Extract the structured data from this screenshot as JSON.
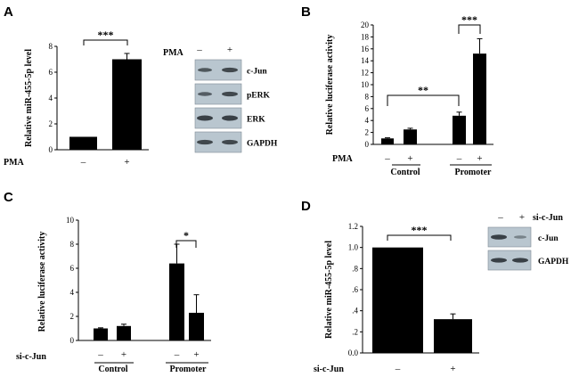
{
  "chart_data": [
    {
      "panel": "A",
      "type": "bar",
      "ylabel": "Relative miR-455-5p level",
      "ylim": [
        0,
        8
      ],
      "yticks": [
        "0",
        "2",
        "4",
        "6",
        "8"
      ],
      "treatment_label": "PMA",
      "treatment_signs": [
        "–",
        "+"
      ],
      "values": [
        1.0,
        7.0
      ],
      "errors": [
        0,
        0.45
      ],
      "significance": "***",
      "western_blot": {
        "treatment_label": "PMA",
        "signs": [
          "–",
          "+"
        ],
        "rows": [
          "c-Jun",
          "pERK",
          "ERK",
          "GAPDH"
        ]
      }
    },
    {
      "panel": "B",
      "type": "bar",
      "ylabel": "Relative luciferase activity",
      "ylim": [
        0,
        20
      ],
      "yticks": [
        "0",
        "2",
        "4",
        "6",
        "8",
        "10",
        "12",
        "14",
        "16",
        "18",
        "20"
      ],
      "treatment_label": "PMA",
      "treatment_signs": [
        "–",
        "+",
        "–",
        "+"
      ],
      "groups": [
        "Control",
        "Promoter"
      ],
      "values": [
        1.0,
        2.5,
        4.8,
        15.2
      ],
      "errors": [
        0.1,
        0.2,
        0.6,
        2.5
      ],
      "significance": [
        "**",
        "***"
      ]
    },
    {
      "panel": "C",
      "type": "bar",
      "ylabel": "Relative luciferase activity",
      "ylim": [
        0,
        10
      ],
      "yticks": [
        "0",
        "2",
        "4",
        "6",
        "8",
        "10"
      ],
      "treatment_label": "si-c-Jun",
      "treatment_signs": [
        "–",
        "+",
        "–",
        "+"
      ],
      "groups": [
        "Control",
        "Promoter"
      ],
      "values": [
        1.0,
        1.2,
        6.4,
        2.3
      ],
      "errors": [
        0.05,
        0.15,
        1.6,
        1.5
      ],
      "significance": "*"
    },
    {
      "panel": "D",
      "type": "bar",
      "ylabel": "Relative miR-455-5p level",
      "ylim": [
        0,
        1.2
      ],
      "yticks": [
        "0.0",
        ".2",
        ".4",
        ".6",
        ".8",
        "1.0",
        "1.2"
      ],
      "treatment_label": "si-c-Jun",
      "treatment_signs": [
        "–",
        "+"
      ],
      "values": [
        1.0,
        0.32
      ],
      "errors": [
        0,
        0.05
      ],
      "significance": "***",
      "western_blot": {
        "treatment_label": "si-c-Jun",
        "signs": [
          "–",
          "+"
        ],
        "rows": [
          "c-Jun",
          "GAPDH"
        ]
      }
    }
  ]
}
